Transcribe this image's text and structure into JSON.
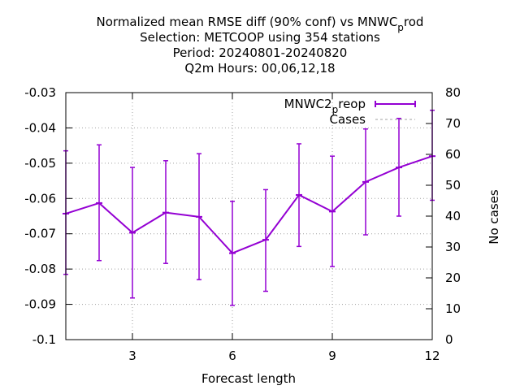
{
  "chart_data": {
    "type": "line",
    "title": [
      "Normalized mean RMSE diff (90% conf) vs MNWC_prod",
      "Selection: METCOOP using   354 stations",
      "Period: 20240801-20240820",
      "Q2m   Hours:  00,06,12,18"
    ],
    "xlabel": "Forecast length",
    "ylabel": "",
    "y2label": "No cases",
    "xlim": [
      1,
      12
    ],
    "ylim": [
      -0.1,
      -0.03
    ],
    "y2lim": [
      0,
      80
    ],
    "xticks": [
      3,
      6,
      9,
      12
    ],
    "yticks": [
      -0.1,
      -0.09,
      -0.08,
      -0.07,
      -0.06,
      -0.05,
      -0.04,
      -0.03
    ],
    "yticklabels": [
      "-0.1",
      "-0.09",
      "-0.08",
      "-0.07",
      "-0.06",
      "-0.05",
      "-0.04",
      "-0.03"
    ],
    "y2ticks": [
      0,
      10,
      20,
      30,
      40,
      50,
      60,
      70,
      80
    ],
    "grid": true,
    "legend_position": "top-right",
    "series": [
      {
        "name": "MNWC2_preop",
        "color": "#9400d3",
        "x": [
          1,
          2,
          3,
          4,
          5,
          6,
          7,
          8,
          9,
          10,
          11,
          12
        ],
        "y": [
          -0.0643,
          -0.0613,
          -0.0697,
          -0.064,
          -0.0652,
          -0.0755,
          -0.0717,
          -0.059,
          -0.0637,
          -0.0553,
          -0.0512,
          -0.048
        ],
        "ylow": [
          -0.0815,
          -0.0776,
          -0.0882,
          -0.0784,
          -0.083,
          -0.0903,
          -0.0863,
          -0.0736,
          -0.0793,
          -0.0703,
          -0.065,
          -0.0605
        ],
        "yhigh": [
          -0.0465,
          -0.0448,
          -0.0512,
          -0.0493,
          -0.0473,
          -0.0608,
          -0.0575,
          -0.0445,
          -0.048,
          -0.0403,
          -0.0373,
          -0.035
        ]
      },
      {
        "name": "Cases",
        "color": "#a0a0a0",
        "axis": "y2",
        "x": [],
        "y": []
      }
    ]
  }
}
